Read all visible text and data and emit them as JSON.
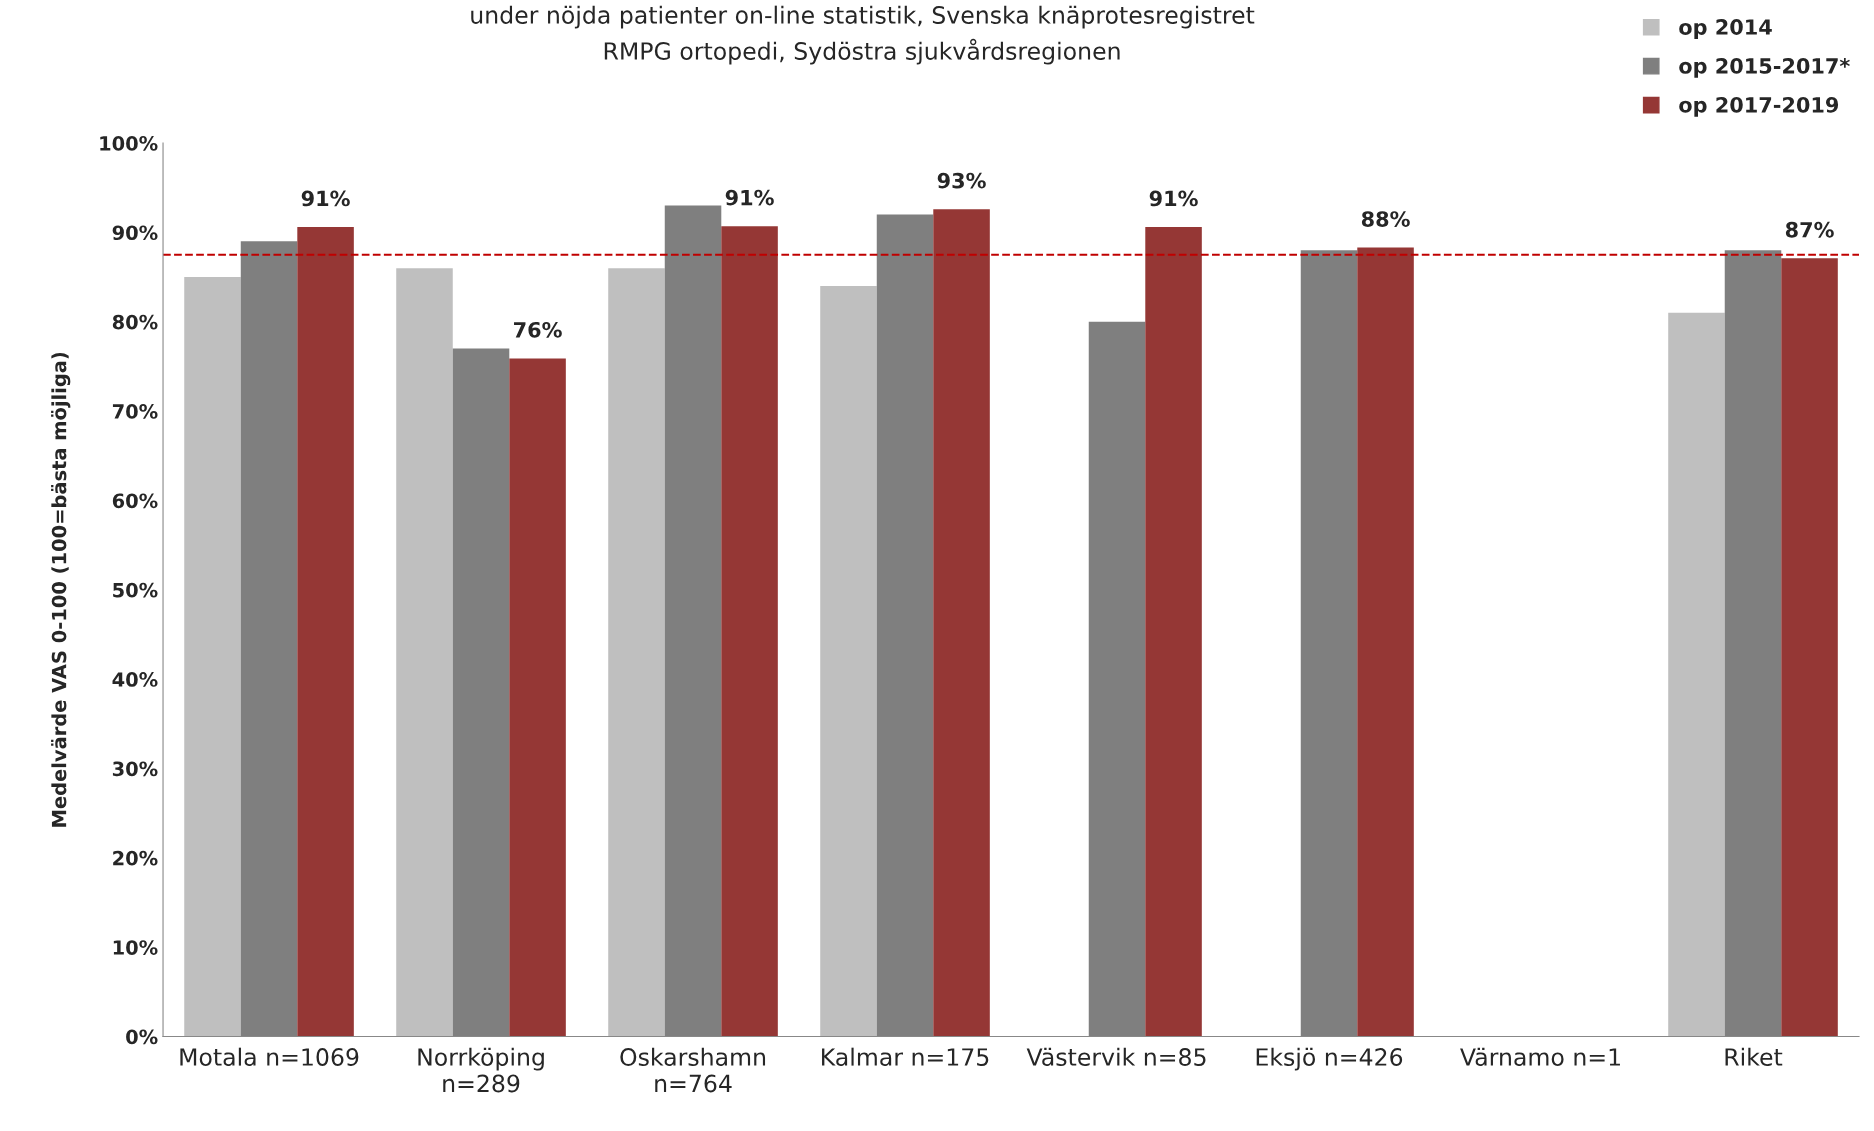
{
  "chart_data": {
    "type": "bar",
    "title": "under nöjda patienter on-line statistik, Svenska knäprotesregistret\nRMPG ortopedi, Sydöstra sjukvårdsregionen",
    "ylabel": "Medelvärde VAS 0-100 (100=bästa möjliga)",
    "categories": [
      "Motala n=1069",
      "Norrköping\nn=289",
      "Oskarshamn\nn=764",
      "Kalmar n=175",
      "Västervik n=85",
      "Eksjö n=426",
      "Värnamo n=1",
      "Riket"
    ],
    "series": [
      {
        "name": "op 2014",
        "color": "#bfbfbf",
        "values": [
          85,
          86,
          86,
          84,
          null,
          null,
          null,
          81
        ]
      },
      {
        "name": "op 2015-2017*",
        "color": "#7f7f7f",
        "values": [
          89,
          77,
          93,
          92,
          80,
          88,
          null,
          88
        ]
      },
      {
        "name": "op 2017-2019",
        "color": "#953735",
        "values": [
          90.6,
          75.9,
          90.7,
          92.6,
          90.6,
          88.3,
          null,
          87.1
        ],
        "value_labels": [
          "91%",
          "76%",
          "91%",
          "93%",
          "91%",
          "88%",
          null,
          "87%"
        ]
      }
    ],
    "ylim": [
      0,
      100
    ],
    "yticks": [
      {
        "value": 0,
        "label": "0%"
      },
      {
        "value": 10,
        "label": "10%"
      },
      {
        "value": 20,
        "label": "20%"
      },
      {
        "value": 30,
        "label": "30%"
      },
      {
        "value": 40,
        "label": "40%"
      },
      {
        "value": 50,
        "label": "50%"
      },
      {
        "value": 60,
        "label": "60%"
      },
      {
        "value": 70,
        "label": "70%"
      },
      {
        "value": 80,
        "label": "80%"
      },
      {
        "value": 90,
        "label": "90%"
      },
      {
        "value": 100,
        "label": "100%"
      }
    ],
    "ref_lines": [
      {
        "axis": "y",
        "value": 87.5,
        "color": "#c00000",
        "line_style": "dashed"
      }
    ],
    "legend": "top right",
    "marker": "square",
    "grid": false
  }
}
